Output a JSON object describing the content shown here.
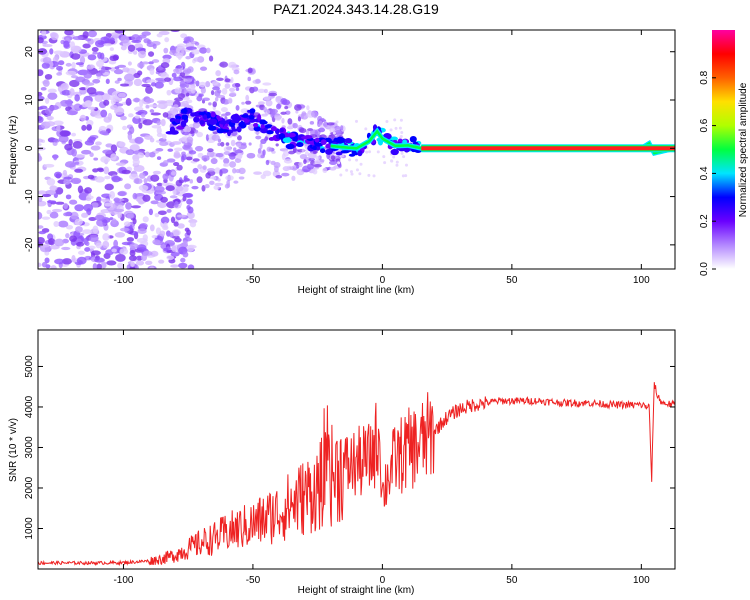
{
  "title": "PAZ1.2024.343.14.28.G19",
  "chart_data": [
    {
      "type": "heatmap",
      "xlabel": "Height of straight line (km)",
      "ylabel": "Frequency (Hz)",
      "xlim": [
        -133,
        113
      ],
      "ylim": [
        -25,
        24.5
      ],
      "xticks": [
        -100,
        -50,
        0,
        50,
        100
      ],
      "yticks": [
        -20,
        -10,
        0,
        10,
        20
      ],
      "colorbar": {
        "label": "Normalized spectral amplitude",
        "range": [
          0,
          1
        ],
        "ticks": [
          0.0,
          0.2,
          0.4,
          0.6,
          0.8
        ],
        "tick_labels": [
          "0.0",
          "0.2",
          "0.4",
          "0.6",
          "0.8"
        ],
        "colormap": [
          "#ffffff",
          "#b388ff",
          "#6a00ff",
          "#0000ff",
          "#00e5ff",
          "#00ff40",
          "#b0ff00",
          "#ffe000",
          "#ff6000",
          "#ff0000",
          "#ff00a0"
        ]
      },
      "ridge": [
        [
          -80,
          4.5
        ],
        [
          -75,
          7.5
        ],
        [
          -70,
          6.5
        ],
        [
          -65,
          5.5
        ],
        [
          -60,
          4.5
        ],
        [
          -55,
          5.5
        ],
        [
          -50,
          6.5
        ],
        [
          -45,
          3.5
        ],
        [
          -40,
          2.5
        ],
        [
          -35,
          1.5
        ],
        [
          -30,
          2.0
        ],
        [
          -25,
          1.0
        ],
        [
          -20,
          0.5
        ],
        [
          -15,
          0.2
        ],
        [
          -10,
          0.0
        ],
        [
          -5,
          1.5
        ],
        [
          -2,
          3.5
        ],
        [
          0,
          2.0
        ],
        [
          5,
          0.5
        ],
        [
          10,
          0.6
        ],
        [
          15,
          0.0
        ],
        [
          50,
          0.0
        ],
        [
          100,
          0.0
        ],
        [
          103,
          1.0
        ],
        [
          105,
          -1.0
        ],
        [
          113,
          0.0
        ]
      ],
      "tone_frequency_hz": 0,
      "tone_start_km": 15
    },
    {
      "type": "line",
      "xlabel": "Height of straight line (km)",
      "ylabel": "SNR (10 * v/v)",
      "xlim": [
        -133,
        113
      ],
      "ylim": [
        0,
        5900
      ],
      "xticks": [
        -100,
        -50,
        0,
        50,
        100
      ],
      "yticks": [
        1000,
        2000,
        3000,
        4000,
        5000
      ],
      "line_color": "#ee2222",
      "series": [
        {
          "x": [
            -133,
            -120,
            -110,
            -100,
            -90,
            -85,
            -80,
            -75,
            -70,
            -65,
            -60,
            -55,
            -50,
            -45,
            -40,
            -35,
            -30,
            -25,
            -22,
            -20,
            -15,
            -10,
            -5,
            -3,
            -1,
            0,
            2,
            5,
            10,
            15,
            20,
            25,
            30,
            35,
            40,
            45,
            50,
            55,
            60,
            70,
            80,
            90,
            100,
            103,
            104,
            105,
            106,
            108,
            113
          ],
          "y": [
            150,
            150,
            150,
            155,
            200,
            250,
            350,
            500,
            650,
            750,
            900,
            1000,
            1100,
            1250,
            1400,
            1600,
            1800,
            2000,
            2200,
            2300,
            2500,
            2600,
            2700,
            3000,
            3400,
            1800,
            2300,
            2700,
            2950,
            3100,
            3400,
            3750,
            3950,
            4050,
            4100,
            4150,
            4150,
            4150,
            4150,
            4100,
            4100,
            4050,
            4050,
            4000,
            2200,
            4600,
            4300,
            4100,
            4050
          ]
        }
      ]
    }
  ]
}
